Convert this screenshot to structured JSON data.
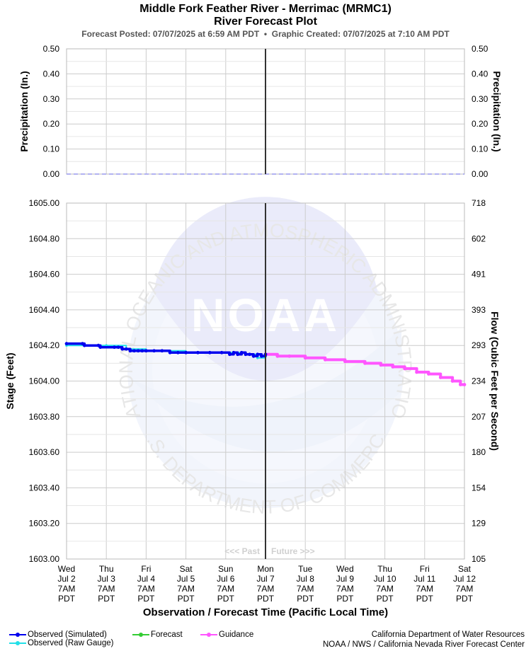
{
  "header": {
    "title_line1": "Middle Fork Feather River - Merrimac (MRMC1)",
    "title_line2": "River Forecast Plot",
    "subtitle": "Forecast Posted: 07/07/2025 at 6:59 AM PDT  •  Graphic Created: 07/07/2025 at 7:10 AM PDT"
  },
  "colors": {
    "observed_simulated": "#0000ee",
    "observed_raw": "#22e0e8",
    "forecast": "#33cc33",
    "guidance": "#ff55ff",
    "precip": "#9999ee",
    "now_line": "#333333",
    "grid": "#cccccc"
  },
  "legend": {
    "observed_simulated": "Observed (Simulated)",
    "observed_raw": "Observed (Raw Gauge)",
    "forecast": "Forecast",
    "guidance": "Guidance"
  },
  "credits": {
    "line1": "California Department of Water Resources",
    "line2": "NOAA / NWS / California Nevada River Forecast Center"
  },
  "watermark": {
    "logo_text": "NOAA",
    "ring_top": "NATIONAL OCEANIC AND ATMOSPHERIC ADMINISTRATION",
    "ring_bottom": "U.S. DEPARTMENT OF COMMERCE"
  },
  "chart_data": [
    {
      "type": "line",
      "panel": "precipitation",
      "ylabel_left": "Precipitation (In.)",
      "ylabel_right": "Precipitation (In.)",
      "ylim": [
        0,
        0.5
      ],
      "yticks": [
        "0.00",
        "0.10",
        "0.20",
        "0.30",
        "0.40",
        "0.50"
      ],
      "grid": true,
      "x": [
        0,
        10
      ],
      "values": [
        0,
        0
      ]
    },
    {
      "type": "line",
      "panel": "stage",
      "ylabel_left": "Stage (Feet)",
      "ylabel_right": "Flow (Cubic Feet per Second)",
      "xlabel": "Observation / Forecast Time (Pacific Local Time)",
      "ylim": [
        1603.0,
        1605.0
      ],
      "yticks": [
        "1603.00",
        "1603.20",
        "1603.40",
        "1603.60",
        "1603.80",
        "1604.00",
        "1604.20",
        "1604.40",
        "1604.60",
        "1604.80",
        "1605.00"
      ],
      "yticks_right": [
        "105",
        "129",
        "154",
        "180",
        "207",
        "234",
        "293",
        "393",
        "491",
        "602",
        "718"
      ],
      "grid": true,
      "x_tick_labels": [
        [
          "Wed",
          "Jul 2",
          "7AM",
          "PDT"
        ],
        [
          "Thu",
          "Jul 3",
          "7AM",
          "PDT"
        ],
        [
          "Fri",
          "Jul 4",
          "7AM",
          "PDT"
        ],
        [
          "Sat",
          "Jul 5",
          "7AM",
          "PDT"
        ],
        [
          "Sun",
          "Jul 6",
          "7AM",
          "PDT"
        ],
        [
          "Mon",
          "Jul 7",
          "7AM",
          "PDT"
        ],
        [
          "Tue",
          "Jul 8",
          "7AM",
          "PDT"
        ],
        [
          "Wed",
          "Jul 9",
          "7AM",
          "PDT"
        ],
        [
          "Thu",
          "Jul 10",
          "7AM",
          "PDT"
        ],
        [
          "Fri",
          "Jul 11",
          "7AM",
          "PDT"
        ],
        [
          "Sat",
          "Jul 12",
          "7AM",
          "PDT"
        ]
      ],
      "now_x": 5,
      "past_label": "<<< Past",
      "future_label": "Future >>>",
      "series": [
        {
          "name": "Observed (Simulated)",
          "x": [
            0.0,
            0.4,
            0.45,
            0.8,
            0.85,
            1.2,
            1.3,
            1.4,
            1.5,
            1.6,
            1.7,
            1.8,
            1.9,
            2.0,
            2.2,
            2.4,
            2.6,
            2.8,
            3.0,
            3.3,
            3.6,
            3.9,
            4.1,
            4.2,
            4.3,
            4.4,
            4.5,
            4.6,
            4.7,
            4.8,
            4.9,
            5.0
          ],
          "values": [
            1604.21,
            1604.21,
            1604.2,
            1604.2,
            1604.19,
            1604.19,
            1604.19,
            1604.18,
            1604.18,
            1604.17,
            1604.17,
            1604.17,
            1604.17,
            1604.17,
            1604.17,
            1604.17,
            1604.16,
            1604.16,
            1604.16,
            1604.16,
            1604.16,
            1604.16,
            1604.15,
            1604.16,
            1604.15,
            1604.16,
            1604.15,
            1604.15,
            1604.14,
            1604.15,
            1604.14,
            1604.15
          ]
        },
        {
          "name": "Observed (Raw Gauge)",
          "x": [
            0.0,
            0.5,
            1.0,
            1.5,
            2.0,
            2.5,
            3.0,
            3.5,
            4.0,
            4.5,
            4.8,
            5.0
          ],
          "values": [
            1604.2,
            1604.2,
            1604.2,
            1604.18,
            1604.17,
            1604.17,
            1604.16,
            1604.16,
            1604.16,
            1604.15,
            1604.13,
            1604.14
          ]
        },
        {
          "name": "Guidance",
          "x": [
            5.0,
            5.3,
            5.6,
            6.0,
            6.5,
            7.0,
            7.5,
            7.9,
            8.2,
            8.5,
            8.8,
            9.1,
            9.4,
            9.7,
            9.9,
            10.0
          ],
          "values": [
            1604.15,
            1604.14,
            1604.14,
            1604.13,
            1604.12,
            1604.11,
            1604.1,
            1604.09,
            1604.08,
            1604.07,
            1604.05,
            1604.04,
            1604.02,
            1604.0,
            1603.98,
            1603.98
          ]
        }
      ]
    }
  ]
}
